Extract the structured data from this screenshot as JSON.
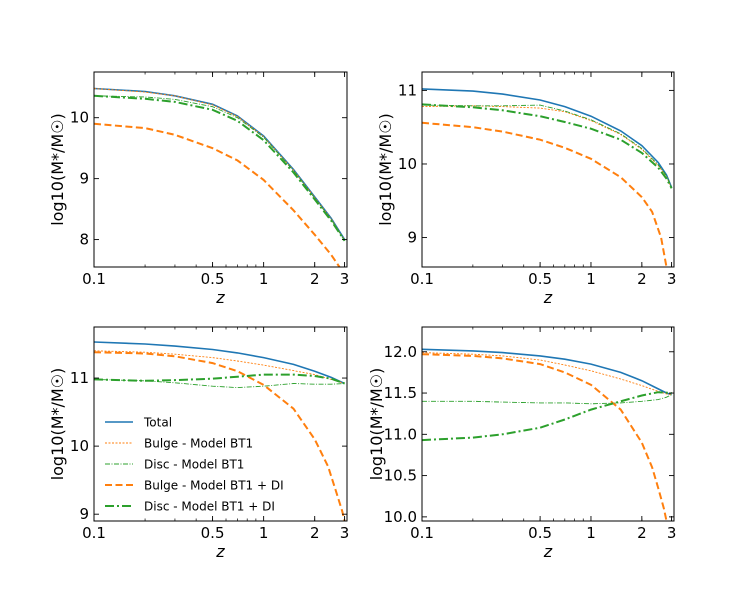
{
  "chart_data": [
    {
      "type": "line",
      "xlabel": "z",
      "ylabel": "log10(M*/M☉)",
      "xscale": "log",
      "xlim": [
        0.1,
        3.1
      ],
      "ylim": [
        7.55,
        10.75
      ],
      "xticks": [
        {
          "v": 0.1,
          "label": "0.1"
        },
        {
          "v": 0.5,
          "label": "0.5"
        },
        {
          "v": 1,
          "label": "1"
        },
        {
          "v": 2,
          "label": "2"
        },
        {
          "v": 3,
          "label": "3"
        }
      ],
      "yticks": [
        {
          "v": 8,
          "label": "8"
        },
        {
          "v": 9,
          "label": "9"
        },
        {
          "v": 10,
          "label": "10"
        }
      ],
      "series": [
        {
          "key": "total",
          "x": [
            0.1,
            0.2,
            0.3,
            0.5,
            0.7,
            1.0,
            1.5,
            2.0,
            2.5,
            3.0
          ],
          "y": [
            10.48,
            10.43,
            10.36,
            10.22,
            10.03,
            9.7,
            9.15,
            8.7,
            8.35,
            8.0
          ]
        },
        {
          "key": "bulge_bt1",
          "x": [
            0.1,
            0.2,
            0.3,
            0.5,
            0.7,
            1.0,
            1.5,
            2.0,
            2.5,
            3.0
          ],
          "y": [
            10.48,
            10.42,
            10.36,
            10.21,
            10.02,
            9.69,
            9.14,
            8.69,
            8.34,
            7.99
          ]
        },
        {
          "key": "disc_bt1",
          "x": [
            0.1,
            0.2,
            0.3,
            0.5,
            0.7,
            1.0,
            1.5,
            2.0,
            2.5,
            3.0
          ],
          "y": [
            10.36,
            10.34,
            10.3,
            10.18,
            10.0,
            9.68,
            9.13,
            8.68,
            8.33,
            7.98
          ]
        },
        {
          "key": "bulge_di",
          "x": [
            0.1,
            0.2,
            0.3,
            0.5,
            0.7,
            1.0,
            1.5,
            2.0,
            2.5,
            2.8
          ],
          "y": [
            9.9,
            9.83,
            9.72,
            9.5,
            9.3,
            8.98,
            8.48,
            8.08,
            7.75,
            7.55
          ]
        },
        {
          "key": "disc_di",
          "x": [
            0.1,
            0.2,
            0.3,
            0.5,
            0.7,
            1.0,
            1.5,
            2.0,
            2.5,
            3.0
          ],
          "y": [
            10.36,
            10.31,
            10.26,
            10.13,
            9.95,
            9.63,
            9.1,
            8.66,
            8.31,
            7.98
          ]
        }
      ]
    },
    {
      "type": "line",
      "xlabel": "z",
      "ylabel": "log10(M*/M☉)",
      "xscale": "log",
      "xlim": [
        0.1,
        3.1
      ],
      "ylim": [
        8.6,
        11.25
      ],
      "xticks": [
        {
          "v": 0.1,
          "label": "0.1"
        },
        {
          "v": 0.5,
          "label": "0.5"
        },
        {
          "v": 1,
          "label": "1"
        },
        {
          "v": 2,
          "label": "2"
        },
        {
          "v": 3,
          "label": "3"
        }
      ],
      "yticks": [
        {
          "v": 9,
          "label": "9"
        },
        {
          "v": 10,
          "label": "10"
        },
        {
          "v": 11,
          "label": "11"
        }
      ],
      "series": [
        {
          "key": "total",
          "x": [
            0.1,
            0.2,
            0.3,
            0.5,
            0.7,
            1.0,
            1.5,
            2.0,
            2.5,
            2.8,
            3.0
          ],
          "y": [
            11.02,
            10.99,
            10.95,
            10.87,
            10.78,
            10.65,
            10.45,
            10.25,
            10.02,
            9.85,
            9.68
          ]
        },
        {
          "key": "bulge_bt1",
          "x": [
            0.1,
            0.2,
            0.3,
            0.5,
            0.7,
            1.0,
            1.5,
            2.0,
            2.5,
            2.8,
            3.0
          ],
          "y": [
            10.78,
            10.79,
            10.78,
            10.76,
            10.71,
            10.59,
            10.4,
            10.2,
            9.98,
            9.83,
            9.67
          ]
        },
        {
          "key": "disc_bt1",
          "x": [
            0.1,
            0.2,
            0.3,
            0.5,
            0.7,
            1.0,
            1.5,
            2.0,
            2.5,
            2.8,
            3.0
          ],
          "y": [
            10.8,
            10.79,
            10.79,
            10.8,
            10.72,
            10.6,
            10.41,
            10.21,
            9.99,
            9.84,
            9.68
          ]
        },
        {
          "key": "bulge_di",
          "x": [
            0.1,
            0.2,
            0.3,
            0.5,
            0.7,
            1.0,
            1.5,
            2.0,
            2.3,
            2.6,
            2.8
          ],
          "y": [
            10.56,
            10.5,
            10.44,
            10.33,
            10.22,
            10.07,
            9.82,
            9.55,
            9.35,
            9.0,
            8.6
          ]
        },
        {
          "key": "disc_di",
          "x": [
            0.1,
            0.2,
            0.3,
            0.5,
            0.7,
            1.0,
            1.5,
            2.0,
            2.5,
            2.8,
            3.0
          ],
          "y": [
            10.81,
            10.77,
            10.73,
            10.65,
            10.57,
            10.48,
            10.33,
            10.15,
            9.95,
            9.8,
            9.67
          ]
        }
      ]
    },
    {
      "type": "line",
      "xlabel": "z",
      "ylabel": "log10(M*/M☉)",
      "xscale": "log",
      "xlim": [
        0.1,
        3.1
      ],
      "ylim": [
        8.9,
        11.75
      ],
      "xticks": [
        {
          "v": 0.1,
          "label": "0.1"
        },
        {
          "v": 0.5,
          "label": "0.5"
        },
        {
          "v": 1,
          "label": "1"
        },
        {
          "v": 2,
          "label": "2"
        },
        {
          "v": 3,
          "label": "3"
        }
      ],
      "yticks": [
        {
          "v": 9,
          "label": "9"
        },
        {
          "v": 10,
          "label": "10"
        },
        {
          "v": 11,
          "label": "11"
        }
      ],
      "series": [
        {
          "key": "total",
          "x": [
            0.1,
            0.2,
            0.3,
            0.5,
            0.7,
            1.0,
            1.5,
            2.0,
            2.5,
            3.0
          ],
          "y": [
            11.53,
            11.5,
            11.47,
            11.42,
            11.37,
            11.3,
            11.2,
            11.1,
            11.01,
            10.92
          ]
        },
        {
          "key": "bulge_bt1",
          "x": [
            0.1,
            0.2,
            0.3,
            0.5,
            0.7,
            1.0,
            1.5,
            2.0,
            2.5,
            3.0
          ],
          "y": [
            11.4,
            11.38,
            11.35,
            11.3,
            11.25,
            11.19,
            11.11,
            11.05,
            10.98,
            10.92
          ]
        },
        {
          "key": "disc_bt1",
          "x": [
            0.1,
            0.2,
            0.3,
            0.5,
            0.7,
            1.0,
            1.5,
            2.0,
            2.5,
            3.0
          ],
          "y": [
            10.98,
            10.96,
            10.93,
            10.88,
            10.86,
            10.88,
            10.92,
            10.91,
            10.91,
            10.92
          ]
        },
        {
          "key": "bulge_di",
          "x": [
            0.1,
            0.2,
            0.3,
            0.5,
            0.7,
            1.0,
            1.5,
            2.0,
            2.4,
            2.7,
            2.9,
            3.0
          ],
          "y": [
            11.38,
            11.36,
            11.32,
            11.22,
            11.1,
            10.9,
            10.55,
            10.1,
            9.7,
            9.3,
            9.05,
            8.9
          ]
        },
        {
          "key": "disc_di",
          "x": [
            0.1,
            0.2,
            0.3,
            0.5,
            0.7,
            1.0,
            1.5,
            2.0,
            2.5,
            3.0
          ],
          "y": [
            10.98,
            10.96,
            10.97,
            10.99,
            11.02,
            11.05,
            11.05,
            11.03,
            10.99,
            10.92
          ]
        }
      ]
    },
    {
      "type": "line",
      "xlabel": "z",
      "ylabel": "log10(M*/M☉)",
      "xscale": "log",
      "xlim": [
        0.1,
        3.1
      ],
      "ylim": [
        9.95,
        12.3
      ],
      "xticks": [
        {
          "v": 0.1,
          "label": "0.1"
        },
        {
          "v": 0.5,
          "label": "0.5"
        },
        {
          "v": 1,
          "label": "1"
        },
        {
          "v": 2,
          "label": "2"
        },
        {
          "v": 3,
          "label": "3"
        }
      ],
      "yticks": [
        {
          "v": 10.0,
          "label": "10.0"
        },
        {
          "v": 10.5,
          "label": "10.5"
        },
        {
          "v": 11.0,
          "label": "11.0"
        },
        {
          "v": 11.5,
          "label": "11.5"
        },
        {
          "v": 12.0,
          "label": "12.0"
        }
      ],
      "series": [
        {
          "key": "total",
          "x": [
            0.1,
            0.2,
            0.3,
            0.5,
            0.7,
            1.0,
            1.5,
            2.0,
            2.5,
            2.8,
            3.0
          ],
          "y": [
            12.03,
            12.01,
            11.99,
            11.95,
            11.91,
            11.85,
            11.75,
            11.65,
            11.55,
            11.5,
            11.48
          ]
        },
        {
          "key": "bulge_bt1",
          "x": [
            0.1,
            0.2,
            0.3,
            0.5,
            0.7,
            1.0,
            1.5,
            2.0,
            2.5,
            2.8,
            3.0
          ],
          "y": [
            11.99,
            11.97,
            11.95,
            11.9,
            11.84,
            11.77,
            11.67,
            11.59,
            11.52,
            11.49,
            11.48
          ]
        },
        {
          "key": "disc_bt1",
          "x": [
            0.1,
            0.2,
            0.3,
            0.5,
            0.7,
            1.0,
            1.5,
            2.0,
            2.5,
            2.8,
            3.0
          ],
          "y": [
            11.4,
            11.4,
            11.39,
            11.38,
            11.38,
            11.37,
            11.38,
            11.4,
            11.42,
            11.45,
            11.48
          ]
        },
        {
          "key": "bulge_di",
          "x": [
            0.1,
            0.2,
            0.3,
            0.5,
            0.7,
            1.0,
            1.5,
            2.0,
            2.3,
            2.5,
            2.7,
            2.8
          ],
          "y": [
            11.97,
            11.95,
            11.92,
            11.85,
            11.75,
            11.6,
            11.3,
            10.9,
            10.6,
            10.35,
            10.1,
            9.95
          ]
        },
        {
          "key": "disc_di",
          "x": [
            0.1,
            0.2,
            0.3,
            0.5,
            0.7,
            1.0,
            1.5,
            2.0,
            2.5,
            3.0
          ],
          "y": [
            10.93,
            10.96,
            11.0,
            11.08,
            11.18,
            11.3,
            11.4,
            11.47,
            11.51,
            11.5
          ]
        }
      ]
    }
  ],
  "styles": {
    "total": {
      "color": "#1f77b4",
      "dash": "",
      "width": 1.6
    },
    "bulge_bt1": {
      "color": "#ff7f0e",
      "dash": "2,1.5",
      "width": 0.9
    },
    "disc_bt1": {
      "color": "#2ca02c",
      "dash": "5,1.5,1,1.5",
      "width": 0.9
    },
    "bulge_di": {
      "color": "#ff7f0e",
      "dash": "7,3.5",
      "width": 2.0
    },
    "disc_di": {
      "color": "#2ca02c",
      "dash": "9,3,2,3",
      "width": 2.0
    }
  },
  "legend": {
    "panel": 2,
    "position": "lower-left",
    "items": [
      {
        "key": "total",
        "label": "Total"
      },
      {
        "key": "bulge_bt1",
        "label": "Bulge - Model BT1"
      },
      {
        "key": "disc_bt1",
        "label": "Disc - Model BT1"
      },
      {
        "key": "bulge_di",
        "label": "Bulge - Model BT1 + DI"
      },
      {
        "key": "disc_di",
        "label": "Disc - Model BT1 + DI"
      }
    ]
  }
}
